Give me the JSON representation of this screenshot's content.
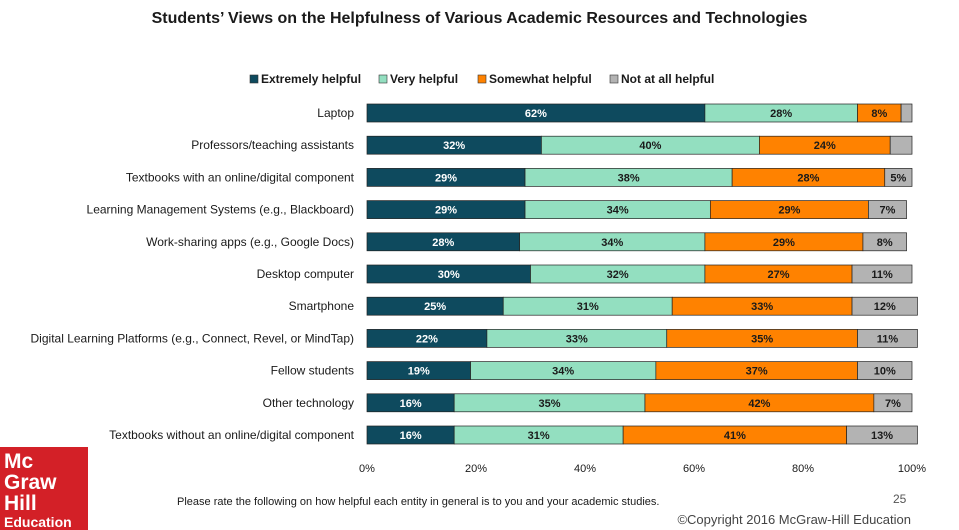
{
  "chart_data": {
    "type": "bar",
    "orientation": "horizontal-stacked",
    "title": "Students’ Views on the Helpfulness of Various Academic Resources and Technologies",
    "categories": [
      "Laptop",
      "Professors/teaching assistants",
      "Textbooks with an online/digital component",
      "Learning Management Systems (e.g., Blackboard)",
      "Work-sharing apps (e.g., Google Docs)",
      "Desktop computer",
      "Smartphone",
      "Digital Learning Platforms (e.g., Connect, Revel, or MindTap)",
      "Fellow students",
      "Other technology",
      "Textbooks without an online/digital component"
    ],
    "series": [
      {
        "name": "Extremely helpful",
        "color": "#0e4a5e",
        "text_color": "#ffffff",
        "values": [
          62,
          32,
          29,
          29,
          28,
          30,
          25,
          22,
          19,
          16,
          16
        ]
      },
      {
        "name": "Very helpful",
        "color": "#93dfc0",
        "text_color": "#1a1a1a",
        "values": [
          28,
          40,
          38,
          34,
          34,
          32,
          31,
          33,
          34,
          35,
          31
        ]
      },
      {
        "name": "Somewhat helpful",
        "color": "#ff8200",
        "text_color": "#1a1a1a",
        "values": [
          8,
          24,
          28,
          29,
          29,
          27,
          33,
          35,
          37,
          42,
          41
        ]
      },
      {
        "name": "Not at all helpful",
        "color": "#b3b3b3",
        "text_color": "#1a1a1a",
        "values": [
          2,
          4,
          5,
          7,
          8,
          11,
          12,
          11,
          10,
          7,
          13
        ]
      }
    ],
    "data_labels": [
      [
        "62%",
        "28%",
        "8%",
        ""
      ],
      [
        "32%",
        "40%",
        "24%",
        ""
      ],
      [
        "29%",
        "38%",
        "28%",
        "5%"
      ],
      [
        "29%",
        "34%",
        "29%",
        "7%"
      ],
      [
        "28%",
        "34%",
        "29%",
        "8%"
      ],
      [
        "30%",
        "32%",
        "27%",
        "11%"
      ],
      [
        "25%",
        "31%",
        "33%",
        "12%"
      ],
      [
        "22%",
        "33%",
        "35%",
        "11%"
      ],
      [
        "19%",
        "34%",
        "37%",
        "10%"
      ],
      [
        "16%",
        "35%",
        "42%",
        "7%"
      ],
      [
        "16%",
        "31%",
        "41%",
        "13%"
      ]
    ],
    "xticks": [
      "0%",
      "20%",
      "40%",
      "60%",
      "80%",
      "100%"
    ],
    "xlim": [
      0,
      100
    ],
    "legend_position": "top",
    "grid": false
  },
  "footnote": "Please rate the following on how helpful each entity in general  is to you and your academic studies.",
  "page_number": "25",
  "copyright": "©Copyright  2016 McGraw-Hill Education",
  "logo": {
    "line1": "Mc",
    "line2": "Graw",
    "line3": "Hill",
    "line4": "Education"
  }
}
